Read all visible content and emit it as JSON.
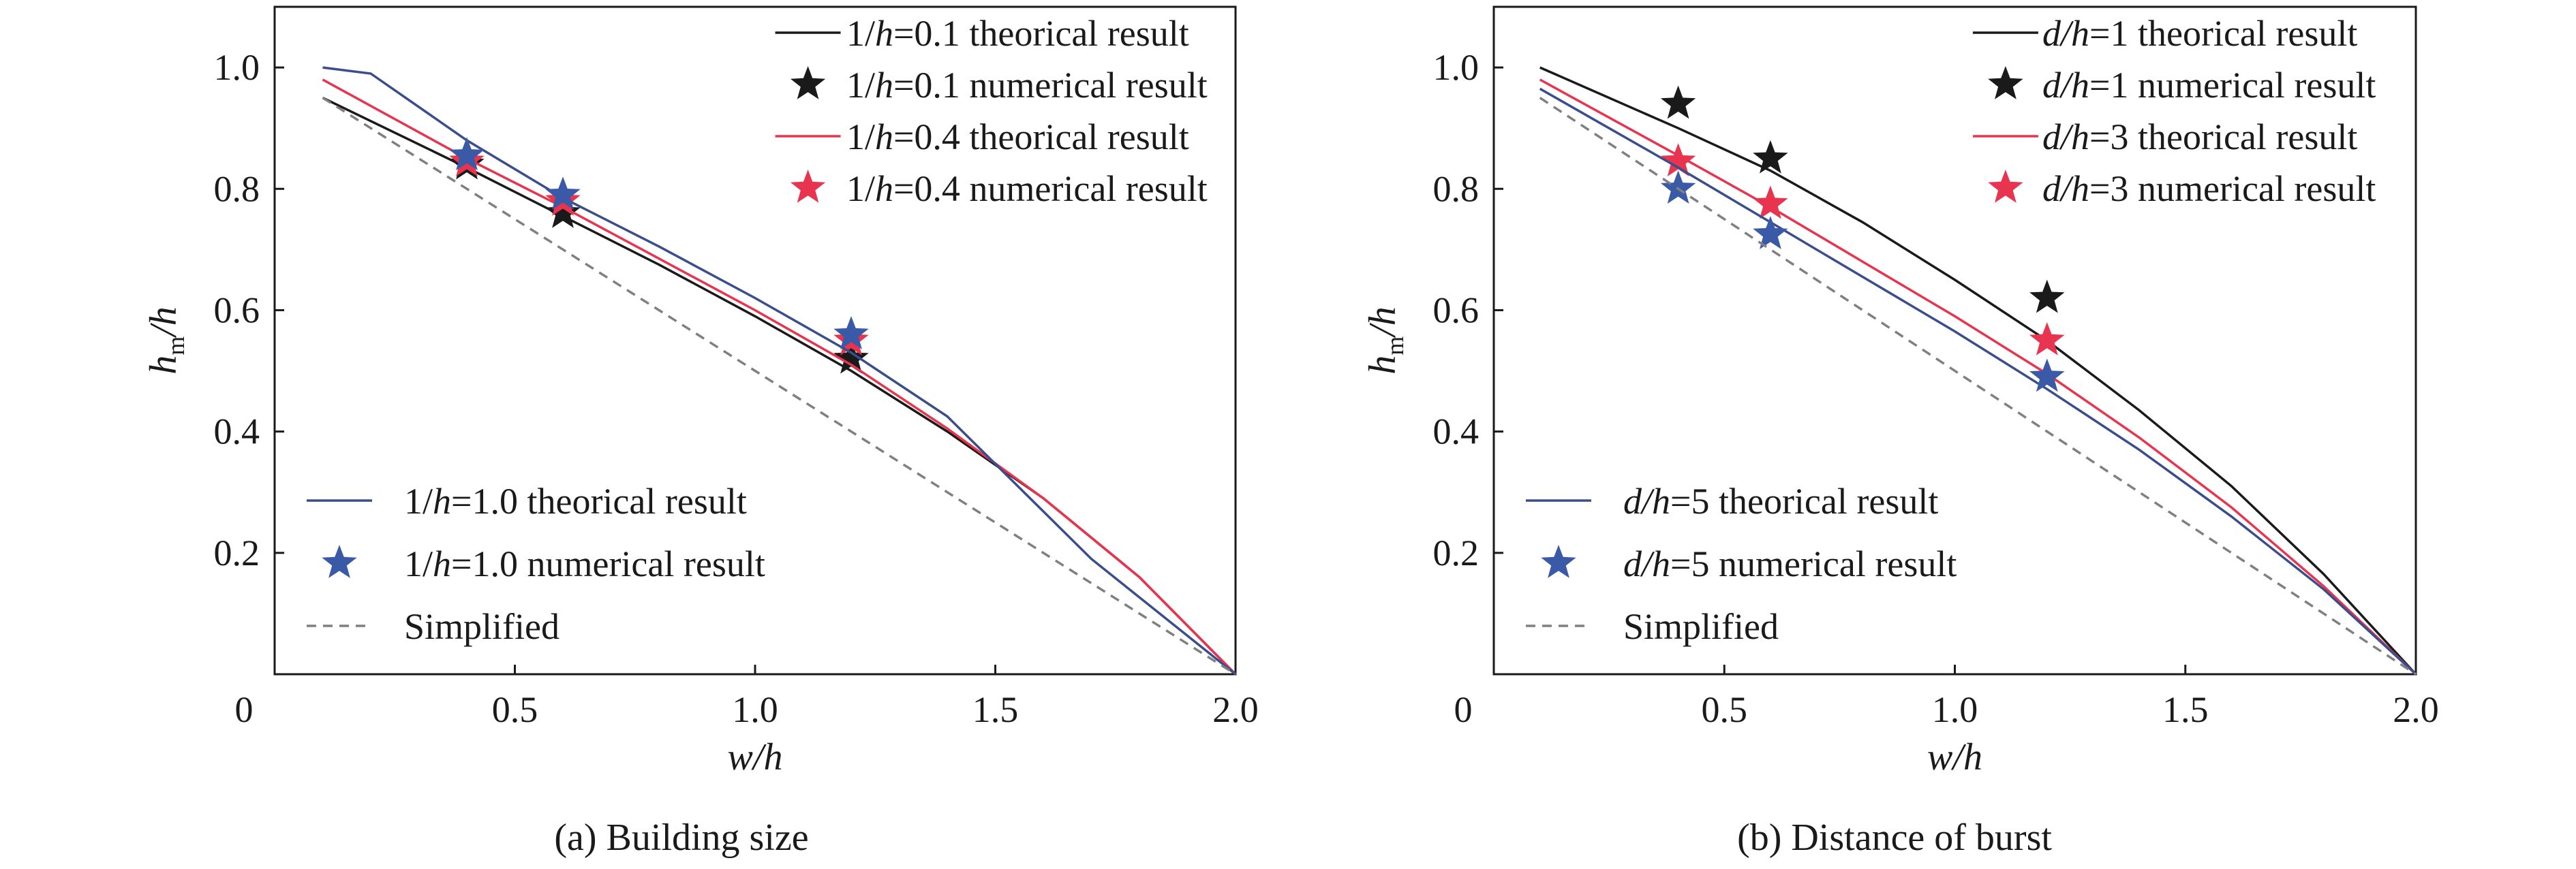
{
  "chart_data": [
    {
      "type": "line",
      "caption": "(a) Building size",
      "xlabel": "w/h",
      "ylabel": "h_m/h",
      "xlim": [
        0,
        2.0
      ],
      "ylim": [
        0,
        1.1
      ],
      "xticks": [
        {
          "value": 0,
          "label": "0"
        },
        {
          "value": 0.5,
          "label": "0.5"
        },
        {
          "value": 1.0,
          "label": "1.0"
        },
        {
          "value": 1.5,
          "label": "1.5"
        },
        {
          "value": 2.0,
          "label": "2.0"
        }
      ],
      "yticks": [
        {
          "value": 0.2,
          "label": "0.2"
        },
        {
          "value": 0.4,
          "label": "0.4"
        },
        {
          "value": 0.6,
          "label": "0.6"
        },
        {
          "value": 0.8,
          "label": "0.8"
        },
        {
          "value": 1.0,
          "label": "1.0"
        }
      ],
      "grid": false,
      "legend_groups": [
        {
          "placement": "top-right",
          "entries": [
            0,
            1,
            2,
            3
          ]
        },
        {
          "placement": "bottom-left",
          "entries": [
            4,
            5,
            6
          ]
        }
      ],
      "series": [
        {
          "name": "1/h=0.1 theorical result",
          "legend_prefix": "1/",
          "legend_var": "h",
          "legend_suffix": "=0.1 theorical result",
          "kind": "line",
          "color": "#1a1a1a",
          "dash": "none",
          "x": [
            0.1,
            0.4,
            0.6,
            0.8,
            1.0,
            1.2,
            1.4,
            1.6,
            1.8,
            2.0
          ],
          "y": [
            0.95,
            0.835,
            0.755,
            0.675,
            0.59,
            0.5,
            0.4,
            0.29,
            0.16,
            0.0
          ]
        },
        {
          "name": "1/h=0.1 numerical result",
          "legend_prefix": "1/",
          "legend_var": "h",
          "legend_suffix": "=0.1 numerical result",
          "kind": "marker",
          "color": "#1a1a1a",
          "x": [
            0.4,
            0.6,
            1.2
          ],
          "y": [
            0.84,
            0.76,
            0.52
          ]
        },
        {
          "name": "1/h=0.4 theorical result",
          "legend_prefix": "1/",
          "legend_var": "h",
          "legend_suffix": "=0.4 theorical result",
          "kind": "line",
          "color": "#e8344f",
          "dash": "none",
          "x": [
            0.1,
            0.4,
            0.6,
            0.8,
            1.0,
            1.2,
            1.4,
            1.6,
            1.8,
            2.0
          ],
          "y": [
            0.98,
            0.85,
            0.77,
            0.685,
            0.6,
            0.51,
            0.405,
            0.29,
            0.16,
            0.0
          ]
        },
        {
          "name": "1/h=0.4 numerical result",
          "legend_prefix": "1/",
          "legend_var": "h",
          "legend_suffix": "=0.4 numerical result",
          "kind": "marker",
          "color": "#e8344f",
          "x": [
            0.4,
            0.6,
            1.2
          ],
          "y": [
            0.845,
            0.78,
            0.55
          ]
        },
        {
          "name": "1/h=1.0 theorical result",
          "legend_prefix": "1/",
          "legend_var": "h",
          "legend_suffix": "=1.0 theorical result",
          "kind": "line",
          "color": "#3a4d8c",
          "dash": "none",
          "x": [
            0.1,
            0.2,
            0.4,
            0.6,
            0.8,
            1.0,
            1.2,
            1.4,
            1.7,
            2.0
          ],
          "y": [
            1.0,
            0.99,
            0.88,
            0.785,
            0.705,
            0.62,
            0.53,
            0.425,
            0.19,
            0.0
          ]
        },
        {
          "name": "1/h=1.0 numerical result",
          "legend_prefix": "1/",
          "legend_var": "h",
          "legend_suffix": "=1.0 numerical result",
          "kind": "marker",
          "color": "#3a5aa8",
          "x": [
            0.4,
            0.6,
            1.2
          ],
          "y": [
            0.855,
            0.79,
            0.56
          ]
        },
        {
          "name": "Simplified",
          "legend_prefix": "Simplified",
          "legend_var": "",
          "legend_suffix": "",
          "kind": "line",
          "color": "#808080",
          "dash": "dashed",
          "x": [
            0.1,
            2.0
          ],
          "y": [
            0.95,
            0.0
          ]
        }
      ]
    },
    {
      "type": "line",
      "caption": "(b) Distance of burst",
      "xlabel": "w/h",
      "ylabel": "h_m/h",
      "xlim": [
        0,
        2.0
      ],
      "ylim": [
        0,
        1.1
      ],
      "xticks": [
        {
          "value": 0,
          "label": "0"
        },
        {
          "value": 0.5,
          "label": "0.5"
        },
        {
          "value": 1.0,
          "label": "1.0"
        },
        {
          "value": 1.5,
          "label": "1.5"
        },
        {
          "value": 2.0,
          "label": "2.0"
        }
      ],
      "yticks": [
        {
          "value": 0.2,
          "label": "0.2"
        },
        {
          "value": 0.4,
          "label": "0.4"
        },
        {
          "value": 0.6,
          "label": "0.6"
        },
        {
          "value": 0.8,
          "label": "0.8"
        },
        {
          "value": 1.0,
          "label": "1.0"
        }
      ],
      "grid": false,
      "legend_groups": [
        {
          "placement": "top-right",
          "entries": [
            0,
            1,
            2,
            3
          ]
        },
        {
          "placement": "bottom-left",
          "entries": [
            4,
            5,
            6
          ]
        }
      ],
      "series": [
        {
          "name": "d/h=1 theorical result",
          "legend_prefix": "",
          "legend_var": "d/h",
          "legend_suffix": "=1 theorical result",
          "kind": "line",
          "color": "#1a1a1a",
          "dash": "none",
          "x": [
            0.1,
            0.4,
            0.6,
            0.8,
            1.0,
            1.2,
            1.4,
            1.6,
            1.8,
            2.0
          ],
          "y": [
            1.0,
            0.9,
            0.83,
            0.745,
            0.65,
            0.55,
            0.435,
            0.31,
            0.165,
            0.0
          ]
        },
        {
          "name": "d/h=1 numerical result",
          "legend_prefix": "",
          "legend_var": "d/h",
          "legend_suffix": "=1 numerical result",
          "kind": "marker",
          "color": "#1a1a1a",
          "x": [
            0.4,
            0.6,
            1.2
          ],
          "y": [
            0.94,
            0.85,
            0.62
          ]
        },
        {
          "name": "d/h=3 theorical result",
          "legend_prefix": "",
          "legend_var": "d/h",
          "legend_suffix": "=3 theorical result",
          "kind": "line",
          "color": "#e8344f",
          "dash": "none",
          "x": [
            0.1,
            0.4,
            0.6,
            0.8,
            1.0,
            1.2,
            1.4,
            1.6,
            1.8,
            2.0
          ],
          "y": [
            0.98,
            0.855,
            0.77,
            0.68,
            0.59,
            0.495,
            0.39,
            0.275,
            0.145,
            0.0
          ]
        },
        {
          "name": "d/h=3 numerical result",
          "legend_prefix": "",
          "legend_var": "d/h",
          "legend_suffix": "=3 numerical result",
          "kind": "marker",
          "color": "#e8344f",
          "x": [
            0.4,
            0.6,
            1.2
          ],
          "y": [
            0.845,
            0.775,
            0.55
          ]
        },
        {
          "name": "d/h=5 theorical result",
          "legend_prefix": "",
          "legend_var": "d/h",
          "legend_suffix": "=5 theorical result",
          "kind": "line",
          "color": "#3a4d8c",
          "dash": "none",
          "x": [
            0.1,
            0.4,
            0.6,
            0.8,
            1.0,
            1.2,
            1.4,
            1.6,
            1.8,
            2.0
          ],
          "y": [
            0.965,
            0.835,
            0.745,
            0.655,
            0.565,
            0.47,
            0.37,
            0.26,
            0.14,
            0.0
          ]
        },
        {
          "name": "d/h=5 numerical result",
          "legend_prefix": "",
          "legend_var": "d/h",
          "legend_suffix": "=5 numerical result",
          "kind": "marker",
          "color": "#3a5aa8",
          "x": [
            0.4,
            0.6,
            1.2
          ],
          "y": [
            0.8,
            0.725,
            0.49
          ]
        },
        {
          "name": "Simplified",
          "legend_prefix": "Simplified",
          "legend_var": "",
          "legend_suffix": "",
          "kind": "line",
          "color": "#808080",
          "dash": "dashed",
          "x": [
            0.1,
            2.0
          ],
          "y": [
            0.95,
            0.0
          ]
        }
      ]
    }
  ]
}
